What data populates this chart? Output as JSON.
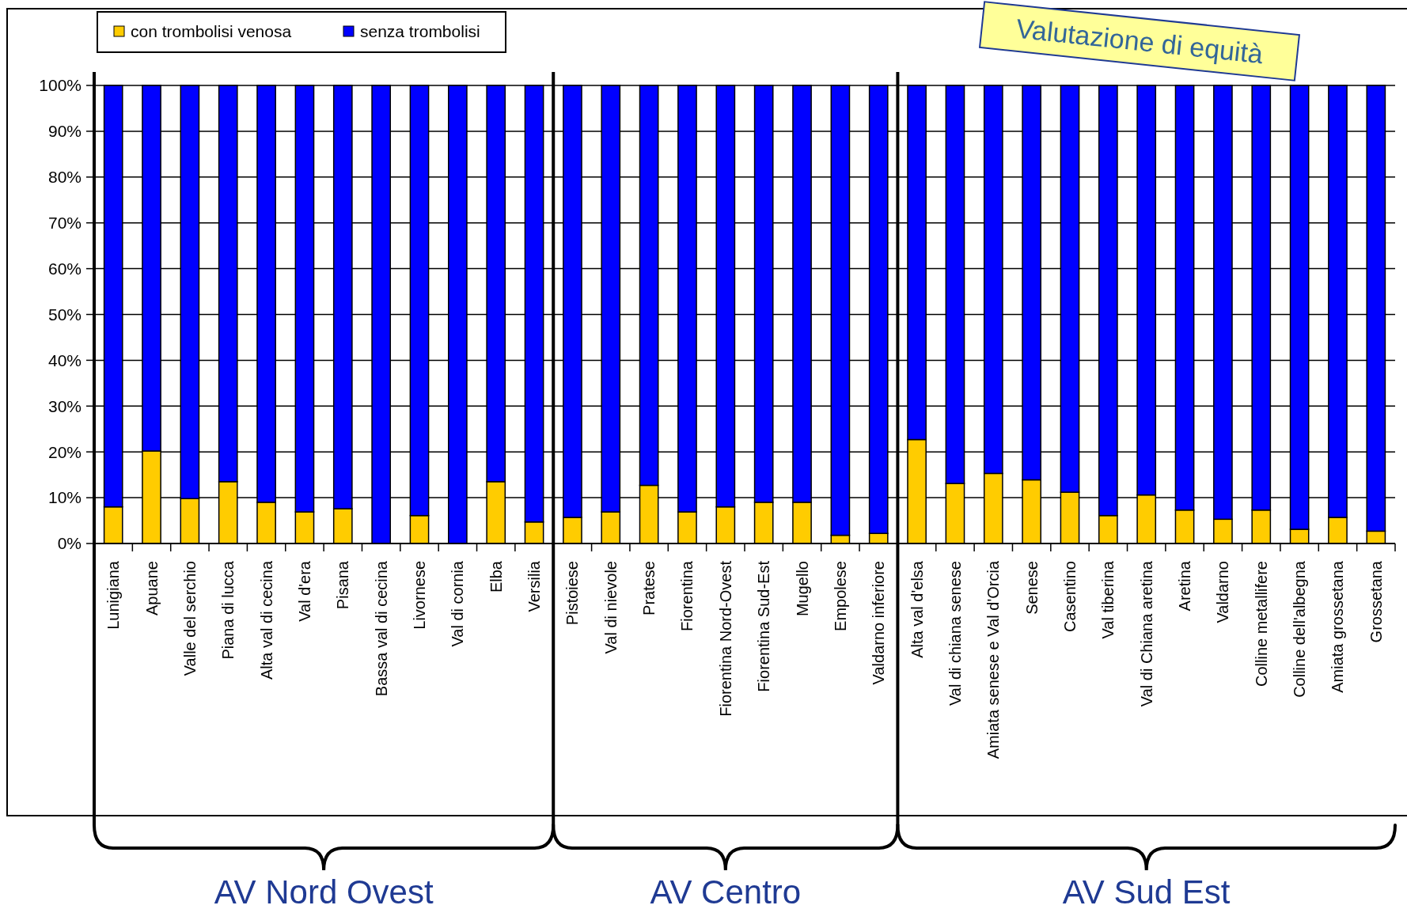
{
  "chart_data": {
    "type": "bar",
    "stacked": true,
    "categories": [
      "Lunigiana",
      "Apuane",
      "Valle del serchio",
      "Piana di lucca",
      "Alta val di cecina",
      "Val d'era",
      "Pisana",
      "Bassa val di cecina",
      "Livornese",
      "Val di cornia",
      "Elba",
      "Versilia",
      "Pistoiese",
      "Val di nievole",
      "Pratese",
      "Fiorentina",
      "Fiorentina Nord-Ovest",
      "Fiorentina Sud-Est",
      "Mugello",
      "Empolese",
      "Valdarno inferiore",
      "Alta val d'elsa",
      "Val di chiana senese",
      "Amiata senese e Val d'Orcia",
      "Senese",
      "Casentino",
      "Val tiberina",
      "Val di Chiana aretina",
      "Aretina",
      "Valdarno",
      "Colline metallifere",
      "Colline dell'albegna",
      "Amiata grossetana",
      "Grossetana"
    ],
    "series": [
      {
        "name": "con trombolisi venosa",
        "color": "#ffcc00",
        "values": [
          8.0,
          20.2,
          9.8,
          13.5,
          9.0,
          6.9,
          7.6,
          0,
          6.1,
          0,
          13.5,
          4.7,
          5.7,
          6.9,
          12.7,
          6.9,
          8.0,
          9.0,
          9.0,
          1.8,
          2.2,
          22.7,
          13.1,
          15.3,
          13.9,
          11.2,
          6.1,
          10.6,
          7.3,
          5.3,
          7.3,
          3.1,
          5.7,
          2.7
        ]
      },
      {
        "name": "senza trombolisi",
        "color": "#0000ff",
        "values": [
          92.0,
          79.8,
          90.2,
          86.5,
          91.0,
          93.1,
          92.4,
          100,
          93.9,
          100,
          86.5,
          95.3,
          94.3,
          93.1,
          87.3,
          93.1,
          92.0,
          91.0,
          91.0,
          98.2,
          97.8,
          77.3,
          86.9,
          84.7,
          86.1,
          88.8,
          93.9,
          89.4,
          92.7,
          94.7,
          92.7,
          96.9,
          94.3,
          97.3
        ]
      }
    ],
    "ylim": [
      0,
      100
    ],
    "yticks": [
      {
        "value": 0,
        "label": "0%"
      },
      {
        "value": 10,
        "label": "10%"
      },
      {
        "value": 20,
        "label": "20%"
      },
      {
        "value": 30,
        "label": "30%"
      },
      {
        "value": 40,
        "label": "40%"
      },
      {
        "value": 50,
        "label": "50%"
      },
      {
        "value": 60,
        "label": "60%"
      },
      {
        "value": 70,
        "label": "70%"
      },
      {
        "value": 80,
        "label": "80%"
      },
      {
        "value": 90,
        "label": "90%"
      },
      {
        "value": 100,
        "label": "100%"
      }
    ],
    "grid": "y",
    "legend": "top left",
    "annotations": [
      "AV Nord Ovest",
      "AV Centro",
      "AV Sud Est",
      "Valutazione di equità"
    ]
  }
}
